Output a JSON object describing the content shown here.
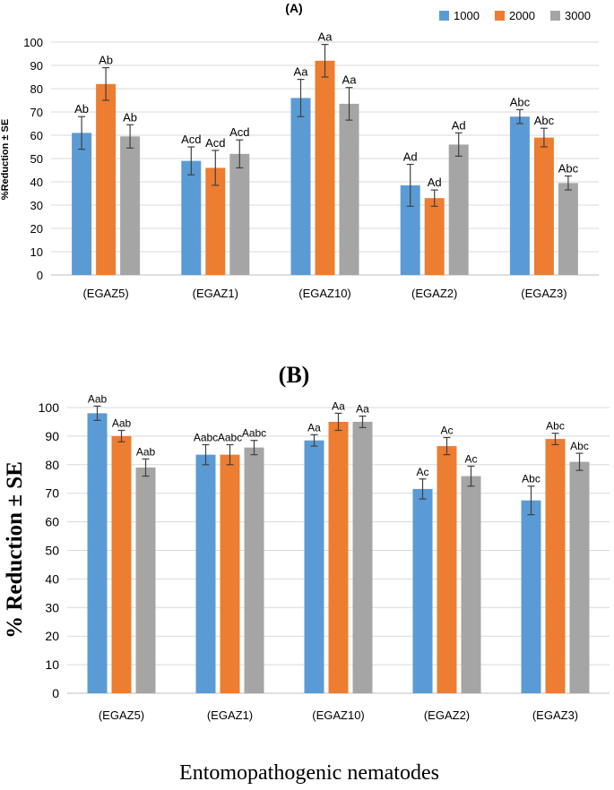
{
  "colors": {
    "s1000": "#5B9BD5",
    "s2000": "#ED7D31",
    "s3000": "#A5A5A5",
    "grid": "#D9D9D9",
    "axis": "#BFBFBF"
  },
  "chart_data": [
    {
      "type": "bar",
      "title": "(A)",
      "ylabel": "%Reduction ± SE",
      "xlabel": "",
      "ylim": [
        0,
        100
      ],
      "yticks": [
        "0",
        "10",
        "20",
        "30",
        "40",
        "50",
        "60",
        "70",
        "80",
        "90",
        "100"
      ],
      "grid": true,
      "legend": "top-right",
      "categories": [
        "(EGAZ5)",
        "(EGAZ1)",
        "(EGAZ10)",
        "(EGAZ2)",
        "(EGAZ3)"
      ],
      "series": [
        {
          "name": "1000",
          "values": [
            61,
            49,
            76,
            38.5,
            68
          ],
          "errors": [
            7,
            6,
            8,
            9,
            3
          ],
          "labels": [
            "Ab",
            "Acd",
            "Aa",
            "Ad",
            "Abc"
          ]
        },
        {
          "name": "2000",
          "values": [
            82,
            46,
            92,
            33,
            59
          ],
          "errors": [
            7,
            7.5,
            7,
            3.5,
            4
          ],
          "labels": [
            "Ab",
            "Acd",
            "Aa",
            "Ad",
            "Abc"
          ]
        },
        {
          "name": "3000",
          "values": [
            59.5,
            52,
            73.5,
            56,
            39.5
          ],
          "errors": [
            5,
            6,
            7,
            5,
            3
          ],
          "labels": [
            "Ab",
            "Acd",
            "Aa",
            "Ad",
            "Abc"
          ]
        }
      ]
    },
    {
      "type": "bar",
      "title": "(B)",
      "ylabel": "% Reduction ± SE",
      "xlabel": "Entomopathogenic nematodes",
      "ylim": [
        0,
        100
      ],
      "yticks": [
        "0",
        "10",
        "20",
        "30",
        "40",
        "50",
        "60",
        "70",
        "80",
        "90",
        "100"
      ],
      "grid": true,
      "legend": "none",
      "categories": [
        "(EGAZ5)",
        "(EGAZ1)",
        "(EGAZ10)",
        "(EGAZ2)",
        "(EGAZ3)"
      ],
      "series": [
        {
          "name": "1000",
          "values": [
            98,
            83.5,
            88.5,
            71.5,
            67.5
          ],
          "errors": [
            2.5,
            3.5,
            2,
            3.5,
            5
          ],
          "labels": [
            "Aab",
            "Aabc",
            "Aa",
            "Ac",
            "Abc"
          ]
        },
        {
          "name": "2000",
          "values": [
            90,
            83.5,
            95,
            86.5,
            89
          ],
          "errors": [
            2,
            3.5,
            3,
            3,
            2
          ],
          "labels": [
            "Aab",
            "Aabc",
            "Aa",
            "Ac",
            "Abc"
          ]
        },
        {
          "name": "3000",
          "values": [
            79,
            86,
            95,
            76,
            81
          ],
          "errors": [
            3,
            2.5,
            2,
            3.5,
            3
          ],
          "labels": [
            "Aab",
            "Aabc",
            "Aa",
            "Ac",
            "Abc"
          ]
        }
      ]
    }
  ]
}
